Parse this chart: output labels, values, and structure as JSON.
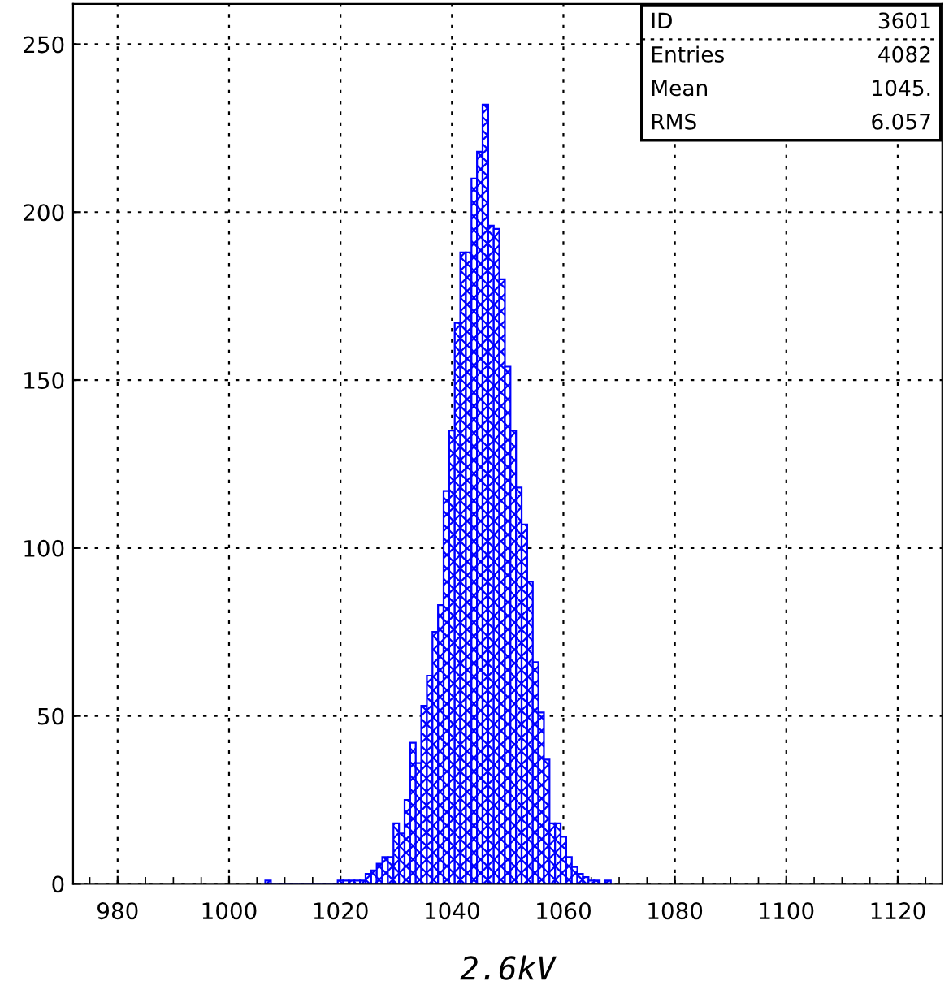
{
  "chart_data": {
    "type": "histogram",
    "xlabel": "2.6kV",
    "bins": [
      1006.5,
      1007.5,
      1008.5,
      1009.5,
      1010.5,
      1011.5,
      1012.5,
      1013.5,
      1014.5,
      1015.5,
      1016.5,
      1017.5,
      1018.5,
      1019.5,
      1020.5,
      1021.5,
      1022.5,
      1023.5,
      1024.5,
      1025.5,
      1026.5,
      1027.5,
      1028.5,
      1029.5,
      1030.5,
      1031.5,
      1032.5,
      1033.5,
      1034.5,
      1035.5,
      1036.5,
      1037.5,
      1038.5,
      1039.5,
      1040.5,
      1041.5,
      1042.5,
      1043.5,
      1044.5,
      1045.5,
      1046.5,
      1047.5,
      1048.5,
      1049.5,
      1050.5,
      1051.5,
      1052.5,
      1053.5,
      1054.5,
      1055.5,
      1056.5,
      1057.5,
      1058.5,
      1059.5,
      1060.5,
      1061.5,
      1062.5,
      1063.5,
      1064.5,
      1065.5,
      1066.5,
      1067.5,
      1068.5
    ],
    "values": [
      1,
      0,
      0,
      0,
      0,
      0,
      0,
      0,
      0,
      0,
      0,
      0,
      0,
      1,
      1,
      1,
      1,
      1,
      3,
      4,
      6,
      8,
      8,
      18,
      15,
      25,
      42,
      36,
      53,
      62,
      75,
      83,
      117,
      135,
      167,
      188,
      188,
      210,
      218,
      232,
      196,
      195,
      180,
      154,
      135,
      118,
      107,
      90,
      66,
      51,
      37,
      18,
      18,
      14,
      8,
      5,
      3,
      2,
      1,
      1,
      0,
      1
    ],
    "color": "#0000ff",
    "xlim": [
      972,
      1128
    ],
    "ylim": [
      0,
      262
    ],
    "xticks": [
      980,
      1000,
      1020,
      1040,
      1060,
      1080,
      1100,
      1120
    ],
    "yticks": [
      0,
      50,
      100,
      150,
      200,
      250
    ],
    "grid": true,
    "annotations": [
      "ID",
      "3601",
      "Entries",
      "4082",
      "Mean",
      "1045.",
      "RMS",
      "6.057"
    ]
  }
}
